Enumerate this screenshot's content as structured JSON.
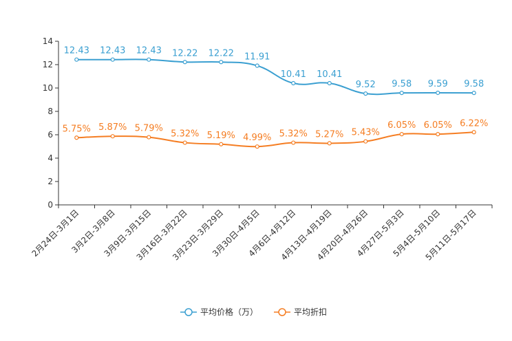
{
  "chart_data": {
    "type": "line",
    "title": "",
    "xlabel": "",
    "ylabel": "",
    "ylim": [
      0,
      14
    ],
    "yticks": [
      0,
      2,
      4,
      6,
      8,
      10,
      12,
      14
    ],
    "grid": false,
    "legend_position": "bottom",
    "categories": [
      "2月24日-3月1日",
      "3月2日-3月8日",
      "3月9日-3月15日",
      "3月16日-3月22日",
      "3月23日-3月29日",
      "3月30日-4月5日",
      "4月6日-4月12日",
      "4月13日-4月19日",
      "4月20日-4月26日",
      "4月27日-5月3日",
      "5月4日-5月10日",
      "5月11日-5月17日"
    ],
    "series": [
      {
        "name": "平均价格（万）",
        "color": "#3a9fd1",
        "values": [
          12.43,
          12.43,
          12.43,
          12.22,
          12.22,
          11.91,
          10.41,
          10.41,
          9.52,
          9.58,
          9.59,
          9.58
        ],
        "labels": [
          "12.43",
          "12.43",
          "12.43",
          "12.22",
          "12.22",
          "11.91",
          "10.41",
          "10.41",
          "9.52",
          "9.58",
          "9.59",
          "9.58"
        ]
      },
      {
        "name": "平均折扣",
        "color": "#f57d22",
        "values": [
          5.75,
          5.87,
          5.79,
          5.32,
          5.19,
          4.99,
          5.32,
          5.27,
          5.43,
          6.05,
          6.05,
          6.22
        ],
        "labels": [
          "5.75%",
          "5.87%",
          "5.79%",
          "5.32%",
          "5.19%",
          "4.99%",
          "5.32%",
          "5.27%",
          "5.43%",
          "6.05%",
          "6.05%",
          "6.22%"
        ]
      }
    ]
  }
}
